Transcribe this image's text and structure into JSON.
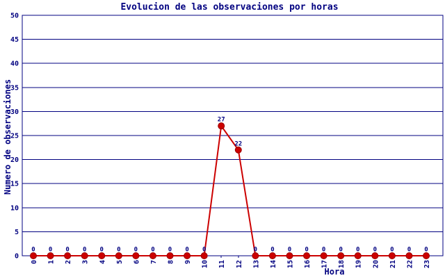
{
  "chart_data": {
    "type": "line",
    "title": "Evolucion de las observaciones por horas",
    "xlabel": "Hora",
    "ylabel": "Numero de observaciones",
    "x": [
      0,
      1,
      2,
      3,
      4,
      5,
      6,
      7,
      8,
      9,
      10,
      11,
      12,
      13,
      14,
      15,
      16,
      17,
      18,
      19,
      20,
      21,
      22,
      23
    ],
    "values": [
      0,
      0,
      0,
      0,
      0,
      0,
      0,
      0,
      0,
      0,
      0,
      27,
      22,
      0,
      0,
      0,
      0,
      0,
      0,
      0,
      0,
      0,
      0,
      0
    ],
    "ylim": [
      0,
      50
    ],
    "ytick_step": 5,
    "grid": "horizontal",
    "legend": "none",
    "point_labels_shown": true,
    "colors": {
      "line": "#cc0000",
      "marker": "#cc0000",
      "marker_edge": "#990000",
      "axis": "#000080",
      "text": "#000080",
      "background": "#ffffff"
    }
  }
}
